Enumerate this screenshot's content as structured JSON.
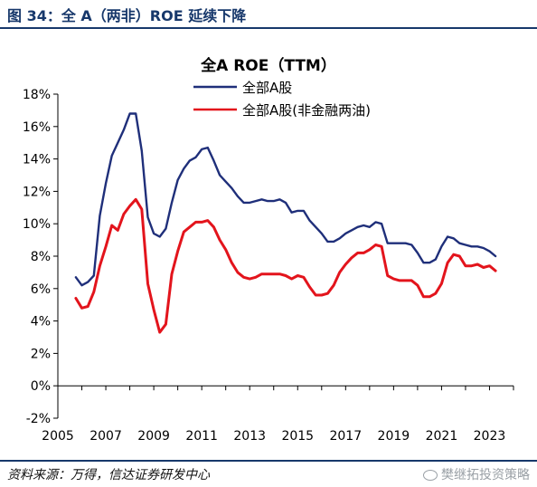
{
  "figure": {
    "title": "图 34：全 A（两非）ROE 延续下降",
    "source": "资料来源：万得，信达证券研发中心",
    "watermark": "樊继拓投资策略"
  },
  "chart_data": {
    "type": "line",
    "title": "全A ROE（TTM）",
    "xlabel": "",
    "ylabel": "",
    "xlim": [
      2005,
      2024
    ],
    "ylim": [
      -2,
      18
    ],
    "x_ticks": [
      "2005",
      "2007",
      "2009",
      "2011",
      "2013",
      "2015",
      "2017",
      "2019",
      "2021",
      "2023"
    ],
    "y_ticks": [
      "-2%",
      "0%",
      "2%",
      "4%",
      "6%",
      "8%",
      "10%",
      "12%",
      "14%",
      "16%",
      "18%"
    ],
    "grid": false,
    "legend": "top-left",
    "colors": {
      "series_1": "#1f2f7a",
      "series_2": "#e3141c"
    },
    "series": [
      {
        "name": "全部A股",
        "x": [
          2005.75,
          2006.0,
          2006.25,
          2006.5,
          2006.75,
          2007.0,
          2007.25,
          2007.5,
          2007.75,
          2008.0,
          2008.25,
          2008.5,
          2008.75,
          2009.0,
          2009.25,
          2009.5,
          2009.75,
          2010.0,
          2010.25,
          2010.5,
          2010.75,
          2011.0,
          2011.25,
          2011.5,
          2011.75,
          2012.0,
          2012.25,
          2012.5,
          2012.75,
          2013.0,
          2013.25,
          2013.5,
          2013.75,
          2014.0,
          2014.25,
          2014.5,
          2014.75,
          2015.0,
          2015.25,
          2015.5,
          2015.75,
          2016.0,
          2016.25,
          2016.5,
          2016.75,
          2017.0,
          2017.25,
          2017.5,
          2017.75,
          2018.0,
          2018.25,
          2018.5,
          2018.75,
          2019.0,
          2019.25,
          2019.5,
          2019.75,
          2020.0,
          2020.25,
          2020.5,
          2020.75,
          2021.0,
          2021.25,
          2021.5,
          2021.75,
          2022.0,
          2022.25,
          2022.5,
          2022.75,
          2023.0,
          2023.25
        ],
        "values": [
          6.7,
          6.2,
          6.4,
          6.8,
          10.5,
          12.5,
          14.2,
          15.0,
          15.8,
          16.8,
          16.8,
          14.5,
          10.4,
          9.4,
          9.2,
          9.7,
          11.3,
          12.7,
          13.4,
          13.9,
          14.1,
          14.6,
          14.7,
          13.9,
          13.0,
          12.6,
          12.2,
          11.7,
          11.3,
          11.3,
          11.4,
          11.5,
          11.4,
          11.4,
          11.5,
          11.3,
          10.7,
          10.8,
          10.8,
          10.2,
          9.8,
          9.4,
          8.9,
          8.9,
          9.1,
          9.4,
          9.6,
          9.8,
          9.9,
          9.8,
          10.1,
          10.0,
          8.8,
          8.8,
          8.8,
          8.8,
          8.7,
          8.2,
          7.6,
          7.6,
          7.8,
          8.6,
          9.2,
          9.1,
          8.8,
          8.7,
          8.6,
          8.6,
          8.5,
          8.3,
          8.0
        ]
      },
      {
        "name": "全部A股(非金融两油)",
        "x": [
          2005.75,
          2006.0,
          2006.25,
          2006.5,
          2006.75,
          2007.0,
          2007.25,
          2007.5,
          2007.75,
          2008.0,
          2008.25,
          2008.5,
          2008.75,
          2009.0,
          2009.25,
          2009.5,
          2009.75,
          2010.0,
          2010.25,
          2010.5,
          2010.75,
          2011.0,
          2011.25,
          2011.5,
          2011.75,
          2012.0,
          2012.25,
          2012.5,
          2012.75,
          2013.0,
          2013.25,
          2013.5,
          2013.75,
          2014.0,
          2014.25,
          2014.5,
          2014.75,
          2015.0,
          2015.25,
          2015.5,
          2015.75,
          2016.0,
          2016.25,
          2016.5,
          2016.75,
          2017.0,
          2017.25,
          2017.5,
          2017.75,
          2018.0,
          2018.25,
          2018.5,
          2018.75,
          2019.0,
          2019.25,
          2019.5,
          2019.75,
          2020.0,
          2020.25,
          2020.5,
          2020.75,
          2021.0,
          2021.25,
          2021.5,
          2021.75,
          2022.0,
          2022.25,
          2022.5,
          2022.75,
          2023.0,
          2023.25
        ],
        "values": [
          5.4,
          4.8,
          4.9,
          5.8,
          7.4,
          8.6,
          9.9,
          9.6,
          10.6,
          11.1,
          11.5,
          10.9,
          6.3,
          4.7,
          3.3,
          3.8,
          6.9,
          8.3,
          9.5,
          9.8,
          10.1,
          10.1,
          10.2,
          9.8,
          9.0,
          8.4,
          7.6,
          7.0,
          6.7,
          6.6,
          6.7,
          6.9,
          6.9,
          6.9,
          6.9,
          6.8,
          6.6,
          6.8,
          6.7,
          6.1,
          5.6,
          5.6,
          5.7,
          6.2,
          7.0,
          7.5,
          7.9,
          8.2,
          8.2,
          8.4,
          8.7,
          8.6,
          6.8,
          6.6,
          6.5,
          6.5,
          6.5,
          6.2,
          5.5,
          5.5,
          5.7,
          6.3,
          7.6,
          8.1,
          8.0,
          7.4,
          7.4,
          7.5,
          7.3,
          7.4,
          7.1
        ]
      }
    ]
  }
}
